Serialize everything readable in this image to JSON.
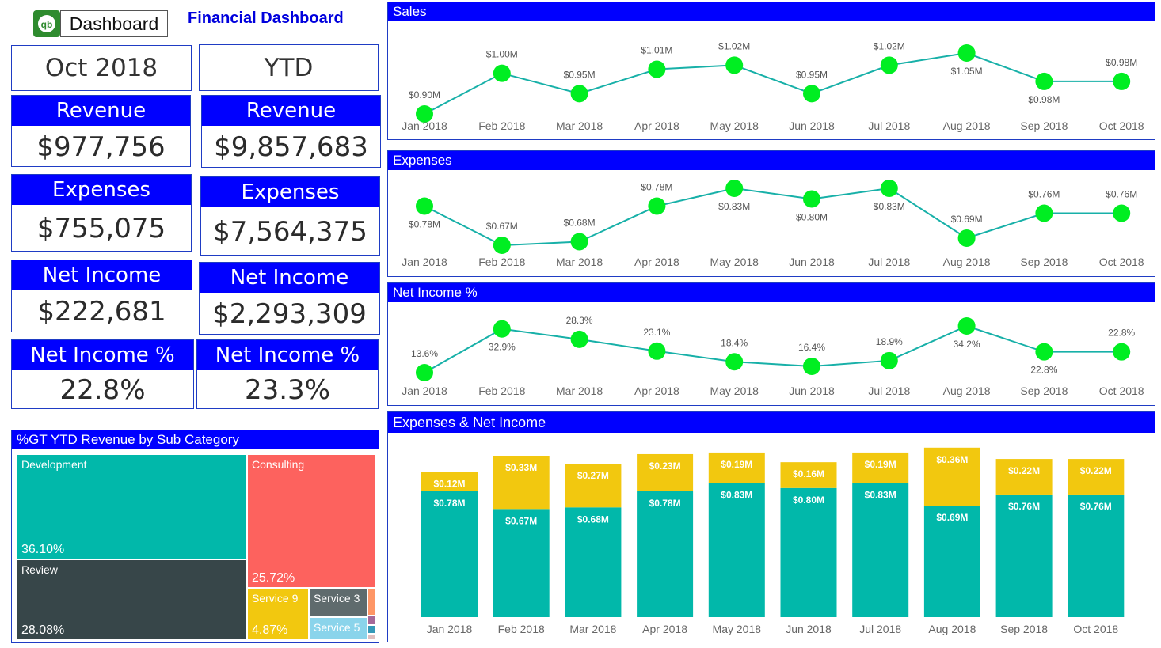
{
  "header": {
    "logo_text": "qb",
    "dashboard_button": "Dashboard",
    "title": "Financial Dashboard"
  },
  "kpis": {
    "period_month": "Oct 2018",
    "period_ytd": "YTD",
    "month": [
      {
        "label": "Revenue",
        "value": "$977,756"
      },
      {
        "label": "Expenses",
        "value": "$755,075"
      },
      {
        "label": "Net Income",
        "value": "$222,681"
      },
      {
        "label": "Net Income %",
        "value": "22.8%"
      }
    ],
    "ytd": [
      {
        "label": "Revenue",
        "value": "$9,857,683"
      },
      {
        "label": "Expenses",
        "value": "$7,564,375"
      },
      {
        "label": "Net Income",
        "value": "$2,293,309"
      },
      {
        "label": "Net Income %",
        "value": "23.3%"
      }
    ]
  },
  "treemap": {
    "title": "%GT YTD Revenue by Sub Category",
    "items": [
      {
        "name": "Development",
        "percent": "36.10%",
        "color": "#01b8aa"
      },
      {
        "name": "Consulting",
        "percent": "25.72%",
        "color": "#fd625e"
      },
      {
        "name": "Review",
        "percent": "28.08%",
        "color": "#374649"
      },
      {
        "name": "Service 9",
        "percent": "4.87%",
        "color": "#f2c80f"
      },
      {
        "name": "Service 3",
        "percent": "",
        "color": "#5f6b6d"
      },
      {
        "name": "Service 5",
        "percent": "",
        "color": "#8ad4eb"
      }
    ],
    "small_colors": [
      "#fe9666",
      "#a66999",
      "#3599b8",
      "#dfbfbf"
    ]
  },
  "chart_data": [
    {
      "type": "line",
      "title": "Sales",
      "x": [
        "Jan 2018",
        "Feb 2018",
        "Mar 2018",
        "Apr 2018",
        "May 2018",
        "Jun 2018",
        "Jul 2018",
        "Aug 2018",
        "Sep 2018",
        "Oct 2018"
      ],
      "values": [
        0.9,
        1.0,
        0.95,
        1.01,
        1.02,
        0.95,
        1.02,
        1.05,
        0.98,
        0.98
      ],
      "labels": [
        "$0.90M",
        "$1.00M",
        "$0.95M",
        "$1.01M",
        "$1.02M",
        "$0.95M",
        "$1.02M",
        "$1.05M",
        "$0.98M",
        "$0.98M"
      ],
      "label_pos": [
        "above",
        "above",
        "above",
        "above",
        "above",
        "above",
        "above",
        "below",
        "below",
        "above"
      ],
      "line_color": "#17b0a8",
      "marker_color": "#00ee22"
    },
    {
      "type": "line",
      "title": "Expenses",
      "x": [
        "Jan 2018",
        "Feb 2018",
        "Mar 2018",
        "Apr 2018",
        "May 2018",
        "Jun 2018",
        "Jul 2018",
        "Aug 2018",
        "Sep 2018",
        "Oct 2018"
      ],
      "values": [
        0.78,
        0.67,
        0.68,
        0.78,
        0.83,
        0.8,
        0.83,
        0.69,
        0.76,
        0.76
      ],
      "labels": [
        "$0.78M",
        "$0.67M",
        "$0.68M",
        "$0.78M",
        "$0.83M",
        "$0.80M",
        "$0.83M",
        "$0.69M",
        "$0.76M",
        "$0.76M"
      ],
      "label_pos": [
        "below",
        "above",
        "above",
        "above",
        "below",
        "below",
        "below",
        "above",
        "above",
        "above"
      ],
      "line_color": "#17b0a8",
      "marker_color": "#00ee22"
    },
    {
      "type": "line",
      "title": "Net Income %",
      "x": [
        "Jan 2018",
        "Feb 2018",
        "Mar 2018",
        "Apr 2018",
        "May 2018",
        "Jun 2018",
        "Jul 2018",
        "Aug 2018",
        "Sep 2018",
        "Oct 2018"
      ],
      "values": [
        13.6,
        32.9,
        28.3,
        23.1,
        18.4,
        16.4,
        18.9,
        34.2,
        22.8,
        22.8
      ],
      "labels": [
        "13.6%",
        "32.9%",
        "28.3%",
        "23.1%",
        "18.4%",
        "16.4%",
        "18.9%",
        "34.2%",
        "22.8%",
        "22.8%"
      ],
      "label_pos": [
        "above",
        "below",
        "above",
        "above",
        "above",
        "above",
        "above",
        "below",
        "below",
        "above"
      ],
      "line_color": "#17b0a8",
      "marker_color": "#00ee22"
    },
    {
      "type": "bar",
      "stacked": true,
      "title": "Expenses & Net Income",
      "categories": [
        "Jan 2018",
        "Feb 2018",
        "Mar 2018",
        "Apr 2018",
        "May 2018",
        "Jun 2018",
        "Jul 2018",
        "Aug 2018",
        "Sep 2018",
        "Oct 2018"
      ],
      "series": [
        {
          "values": [
            0.78,
            0.67,
            0.68,
            0.78,
            0.83,
            0.8,
            0.83,
            0.69,
            0.76,
            0.76
          ],
          "labels": [
            "$0.78M",
            "$0.67M",
            "$0.68M",
            "$0.78M",
            "$0.83M",
            "$0.80M",
            "$0.83M",
            "$0.69M",
            "$0.76M",
            "$0.76M"
          ],
          "color": "#01b8aa"
        },
        {
          "values": [
            0.12,
            0.33,
            0.27,
            0.23,
            0.19,
            0.16,
            0.19,
            0.36,
            0.22,
            0.22
          ],
          "labels": [
            "$0.12M",
            "$0.33M",
            "$0.27M",
            "$0.23M",
            "$0.19M",
            "$0.16M",
            "$0.19M",
            "$0.36M",
            "$0.22M",
            "$0.22M"
          ],
          "color": "#f2c80f"
        }
      ]
    }
  ]
}
